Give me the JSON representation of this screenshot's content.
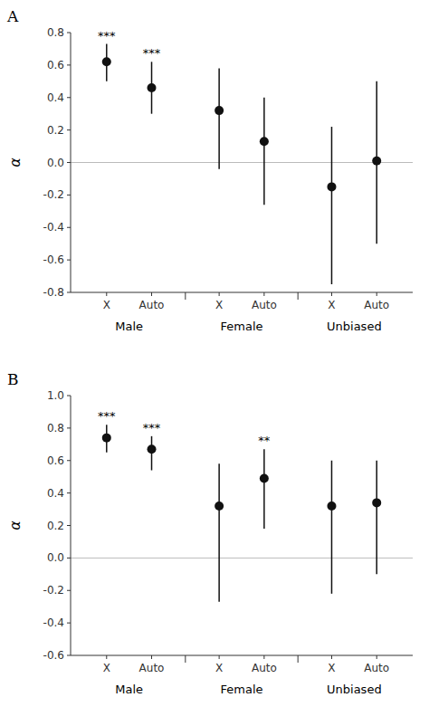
{
  "chart_data": [
    {
      "type": "errorbar",
      "title": "A",
      "ylabel": "α",
      "categories": [
        "X",
        "Auto",
        "X",
        "Auto",
        "X",
        "Auto"
      ],
      "groups": [
        "Male",
        "Female",
        "Unbiased"
      ],
      "values": [
        0.62,
        0.46,
        0.32,
        0.13,
        -0.15,
        0.01
      ],
      "ci_low": [
        0.5,
        0.3,
        -0.04,
        -0.26,
        -0.75,
        -0.5
      ],
      "ci_high": [
        0.73,
        0.62,
        0.58,
        0.4,
        0.22,
        0.5
      ],
      "annotations": [
        "***",
        "***",
        null,
        null,
        null,
        null
      ],
      "color": "#111111",
      "ylim": [
        -0.8,
        0.8
      ],
      "yticks": [
        -0.8,
        -0.6,
        -0.4,
        -0.2,
        {
          "value": 0.0,
          "label": "0.0"
        },
        0.2,
        0.4,
        0.6,
        0.8
      ],
      "grid": false
    },
    {
      "type": "errorbar",
      "title": "B",
      "ylabel": "α",
      "categories": [
        "X",
        "Auto",
        "X",
        "Auto",
        "X",
        "Auto"
      ],
      "groups": [
        "Male",
        "Female",
        "Unbiased"
      ],
      "values": [
        0.74,
        0.67,
        0.32,
        0.49,
        0.32,
        0.34
      ],
      "ci_low": [
        0.65,
        0.54,
        -0.27,
        0.18,
        -0.22,
        -0.1
      ],
      "ci_high": [
        0.82,
        0.75,
        0.58,
        0.67,
        0.6,
        0.6
      ],
      "annotations": [
        "***",
        "***",
        null,
        "**",
        null,
        null
      ],
      "color": "#111111",
      "ylim": [
        -0.6,
        1.0
      ],
      "yticks": [
        -0.6,
        -0.4,
        -0.2,
        {
          "value": 0.0,
          "label": "0.0"
        },
        0.2,
        0.4,
        0.6,
        0.8,
        {
          "value": 1.0,
          "label": "1.0"
        }
      ],
      "grid": false
    }
  ]
}
